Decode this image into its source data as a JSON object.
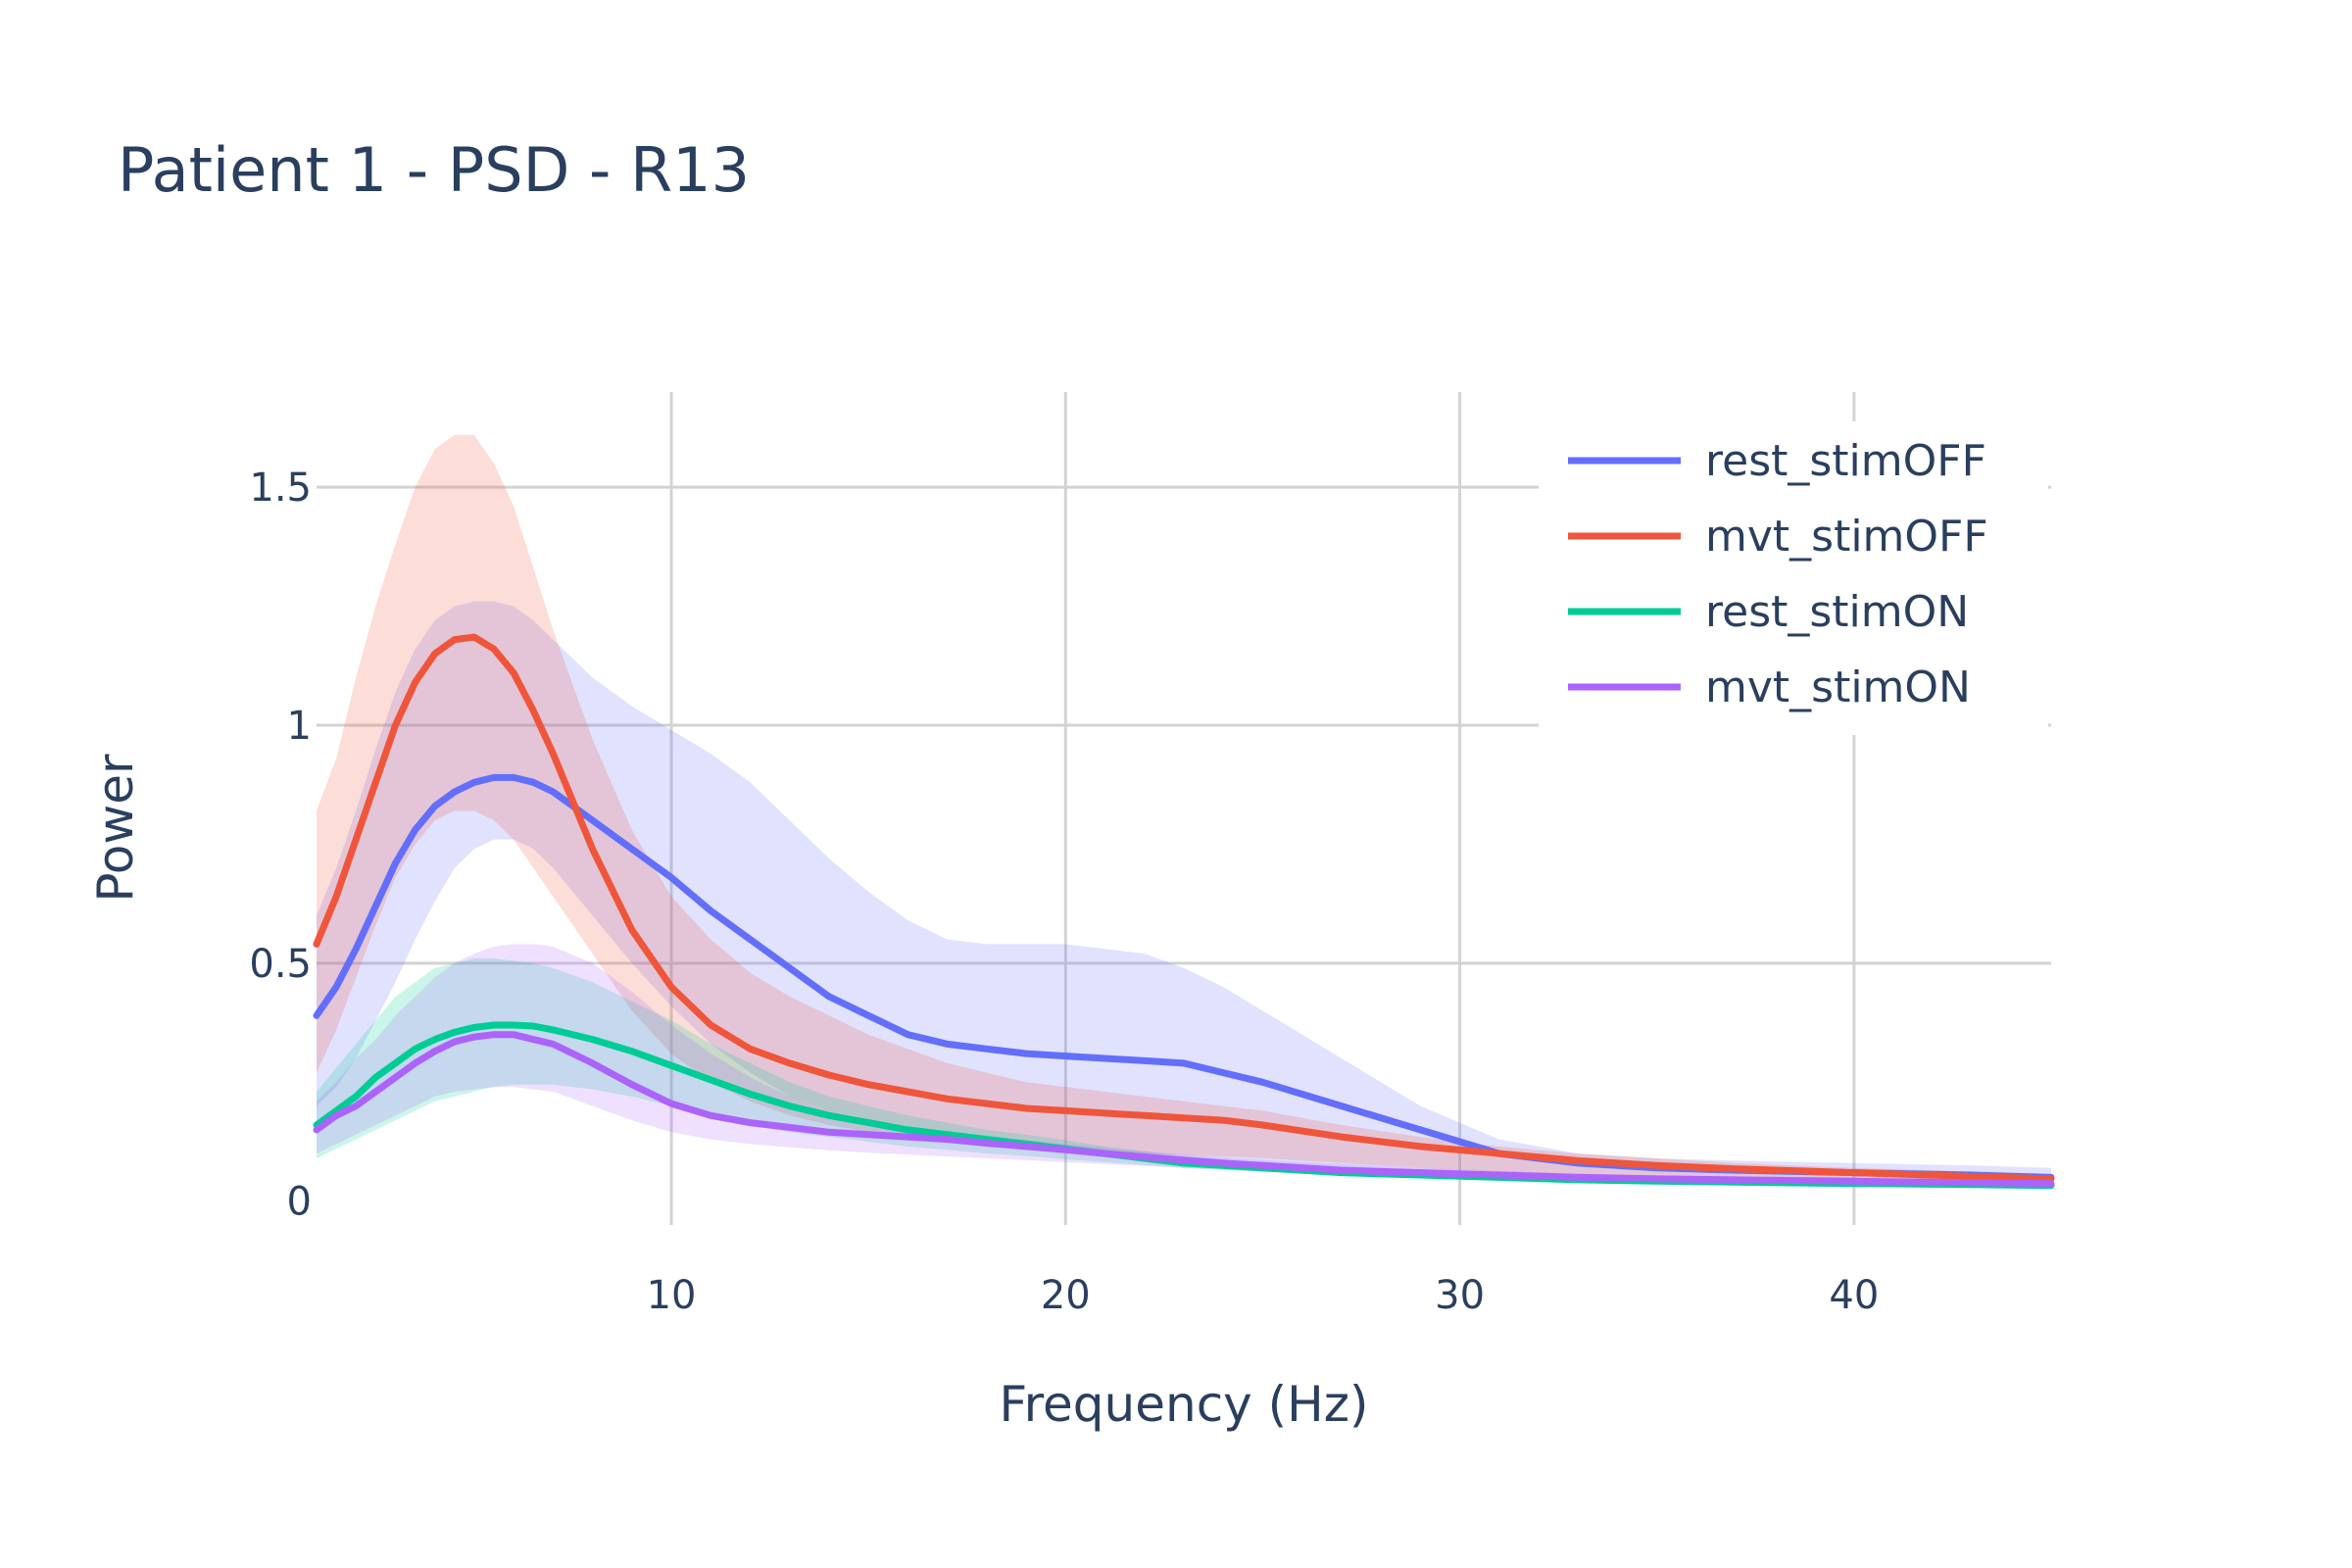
{
  "chart_data": {
    "type": "line",
    "title": "Patient 1 - PSD - R13",
    "xlabel": "Frequency (Hz)",
    "ylabel": "Power",
    "xlim": [
      1,
      45
    ],
    "ylim": [
      -0.05,
      1.7
    ],
    "x_ticks": [
      10,
      20,
      30,
      40
    ],
    "x_tick_labels": [
      "10",
      "20",
      "30",
      "40"
    ],
    "y_ticks": [
      0,
      0.5,
      1,
      1.5
    ],
    "y_tick_labels": [
      "0",
      "0.5",
      "1",
      "1.5"
    ],
    "grid": true,
    "legend_position": "top-right",
    "series": [
      {
        "name": "rest_stimOFF",
        "color": "#636efa",
        "x": [
          1,
          1.5,
          2,
          2.5,
          3,
          3.5,
          4,
          4.5,
          5,
          5.5,
          6,
          6.5,
          7,
          8,
          9,
          10,
          11,
          12,
          13,
          14,
          15,
          16,
          17,
          18,
          19,
          20,
          21,
          22,
          23,
          24,
          25,
          27,
          29,
          31,
          33,
          35,
          37,
          40,
          43,
          45
        ],
        "y": [
          0.39,
          0.45,
          0.53,
          0.62,
          0.71,
          0.78,
          0.83,
          0.86,
          0.88,
          0.89,
          0.89,
          0.88,
          0.86,
          0.8,
          0.74,
          0.68,
          0.61,
          0.55,
          0.49,
          0.43,
          0.39,
          0.35,
          0.33,
          0.32,
          0.31,
          0.305,
          0.3,
          0.295,
          0.29,
          0.27,
          0.25,
          0.2,
          0.15,
          0.1,
          0.08,
          0.07,
          0.065,
          0.06,
          0.055,
          0.05
        ],
        "upper": [
          0.6,
          0.7,
          0.82,
          0.95,
          1.07,
          1.16,
          1.22,
          1.25,
          1.26,
          1.26,
          1.25,
          1.22,
          1.18,
          1.1,
          1.04,
          0.99,
          0.94,
          0.88,
          0.8,
          0.72,
          0.65,
          0.59,
          0.55,
          0.54,
          0.54,
          0.54,
          0.53,
          0.52,
          0.49,
          0.45,
          0.4,
          0.3,
          0.2,
          0.13,
          0.1,
          0.09,
          0.085,
          0.08,
          0.075,
          0.07
        ],
        "lower": [
          0.2,
          0.24,
          0.3,
          0.38,
          0.46,
          0.55,
          0.63,
          0.7,
          0.74,
          0.76,
          0.76,
          0.74,
          0.7,
          0.6,
          0.5,
          0.41,
          0.33,
          0.27,
          0.22,
          0.19,
          0.17,
          0.155,
          0.145,
          0.135,
          0.125,
          0.115,
          0.105,
          0.095,
          0.09,
          0.085,
          0.08,
          0.07,
          0.06,
          0.05,
          0.045,
          0.04,
          0.04,
          0.035,
          0.03,
          0.03
        ]
      },
      {
        "name": "mvt_stimOFF",
        "color": "#ef553b",
        "x": [
          1,
          1.5,
          2,
          2.5,
          3,
          3.5,
          4,
          4.5,
          5,
          5.5,
          6,
          6.5,
          7,
          8,
          9,
          10,
          11,
          12,
          13,
          14,
          15,
          16,
          17,
          18,
          19,
          20,
          21,
          22,
          23,
          24,
          25,
          27,
          29,
          31,
          33,
          35,
          37,
          40,
          43,
          45
        ],
        "y": [
          0.54,
          0.64,
          0.76,
          0.88,
          1.0,
          1.09,
          1.15,
          1.18,
          1.185,
          1.16,
          1.11,
          1.03,
          0.94,
          0.74,
          0.57,
          0.45,
          0.37,
          0.32,
          0.29,
          0.265,
          0.245,
          0.23,
          0.215,
          0.205,
          0.195,
          0.19,
          0.185,
          0.18,
          0.175,
          0.17,
          0.16,
          0.135,
          0.115,
          0.1,
          0.085,
          0.075,
          0.068,
          0.06,
          0.052,
          0.047
        ],
        "upper": [
          0.82,
          0.93,
          1.1,
          1.25,
          1.38,
          1.5,
          1.58,
          1.61,
          1.61,
          1.55,
          1.46,
          1.33,
          1.2,
          0.97,
          0.78,
          0.64,
          0.55,
          0.48,
          0.43,
          0.39,
          0.35,
          0.32,
          0.29,
          0.27,
          0.25,
          0.24,
          0.23,
          0.22,
          0.21,
          0.2,
          0.19,
          0.16,
          0.135,
          0.115,
          0.1,
          0.09,
          0.08,
          0.07,
          0.062,
          0.055
        ],
        "lower": [
          0.27,
          0.36,
          0.47,
          0.58,
          0.68,
          0.75,
          0.8,
          0.82,
          0.82,
          0.8,
          0.76,
          0.7,
          0.64,
          0.52,
          0.4,
          0.31,
          0.25,
          0.21,
          0.18,
          0.16,
          0.145,
          0.135,
          0.125,
          0.118,
          0.112,
          0.108,
          0.104,
          0.1,
          0.097,
          0.094,
          0.09,
          0.08,
          0.07,
          0.062,
          0.055,
          0.05,
          0.046,
          0.042,
          0.038,
          0.035
        ]
      },
      {
        "name": "rest_stimON",
        "color": "#00cc96",
        "x": [
          1,
          1.5,
          2,
          2.5,
          3,
          3.5,
          4,
          4.5,
          5,
          5.5,
          6,
          6.5,
          7,
          8,
          9,
          10,
          11,
          12,
          13,
          14,
          15,
          16,
          17,
          18,
          19,
          20,
          21,
          22,
          23,
          24,
          25,
          27,
          29,
          31,
          33,
          35,
          37,
          40,
          43,
          45
        ],
        "y": [
          0.16,
          0.19,
          0.22,
          0.26,
          0.29,
          0.32,
          0.34,
          0.355,
          0.365,
          0.37,
          0.37,
          0.368,
          0.36,
          0.34,
          0.315,
          0.285,
          0.255,
          0.225,
          0.2,
          0.18,
          0.165,
          0.15,
          0.14,
          0.13,
          0.12,
          0.11,
          0.1,
          0.09,
          0.08,
          0.075,
          0.07,
          0.06,
          0.055,
          0.05,
          0.045,
          0.042,
          0.04,
          0.037,
          0.035,
          0.033
        ],
        "upper": [
          0.23,
          0.28,
          0.33,
          0.38,
          0.43,
          0.46,
          0.49,
          0.5,
          0.51,
          0.51,
          0.505,
          0.5,
          0.49,
          0.46,
          0.42,
          0.38,
          0.33,
          0.29,
          0.25,
          0.22,
          0.2,
          0.18,
          0.165,
          0.15,
          0.14,
          0.128,
          0.115,
          0.105,
          0.095,
          0.088,
          0.082,
          0.07,
          0.064,
          0.058,
          0.052,
          0.049,
          0.046,
          0.043,
          0.04,
          0.038
        ],
        "lower": [
          0.09,
          0.11,
          0.13,
          0.15,
          0.17,
          0.19,
          0.21,
          0.22,
          0.23,
          0.24,
          0.245,
          0.245,
          0.245,
          0.235,
          0.22,
          0.2,
          0.18,
          0.16,
          0.145,
          0.135,
          0.125,
          0.115,
          0.108,
          0.1,
          0.095,
          0.088,
          0.082,
          0.076,
          0.07,
          0.066,
          0.062,
          0.055,
          0.05,
          0.045,
          0.04,
          0.037,
          0.035,
          0.032,
          0.03,
          0.028
        ]
      },
      {
        "name": "mvt_stimON",
        "color": "#ab63fa",
        "x": [
          1,
          1.5,
          2,
          2.5,
          3,
          3.5,
          4,
          4.5,
          5,
          5.5,
          6,
          6.5,
          7,
          8,
          9,
          10,
          11,
          12,
          13,
          14,
          15,
          16,
          17,
          18,
          19,
          20,
          21,
          22,
          23,
          24,
          25,
          27,
          29,
          31,
          33,
          35,
          37,
          40,
          43,
          45
        ],
        "y": [
          0.15,
          0.18,
          0.2,
          0.23,
          0.26,
          0.29,
          0.315,
          0.335,
          0.345,
          0.35,
          0.35,
          0.34,
          0.33,
          0.29,
          0.245,
          0.205,
          0.18,
          0.165,
          0.155,
          0.145,
          0.14,
          0.135,
          0.13,
          0.122,
          0.115,
          0.108,
          0.1,
          0.093,
          0.086,
          0.08,
          0.075,
          0.065,
          0.06,
          0.055,
          0.05,
          0.047,
          0.045,
          0.042,
          0.039,
          0.037
        ],
        "upper": [
          0.21,
          0.25,
          0.3,
          0.34,
          0.39,
          0.43,
          0.47,
          0.5,
          0.52,
          0.535,
          0.54,
          0.54,
          0.535,
          0.5,
          0.44,
          0.37,
          0.31,
          0.26,
          0.22,
          0.19,
          0.17,
          0.155,
          0.145,
          0.135,
          0.128,
          0.12,
          0.112,
          0.105,
          0.098,
          0.092,
          0.087,
          0.078,
          0.07,
          0.064,
          0.058,
          0.054,
          0.051,
          0.047,
          0.044,
          0.042
        ],
        "lower": [
          0.1,
          0.12,
          0.14,
          0.16,
          0.18,
          0.2,
          0.22,
          0.23,
          0.235,
          0.24,
          0.24,
          0.235,
          0.23,
          0.2,
          0.17,
          0.145,
          0.13,
          0.12,
          0.113,
          0.107,
          0.102,
          0.098,
          0.094,
          0.09,
          0.086,
          0.082,
          0.078,
          0.074,
          0.07,
          0.066,
          0.063,
          0.057,
          0.052,
          0.048,
          0.044,
          0.041,
          0.039,
          0.036,
          0.034,
          0.032
        ]
      }
    ]
  }
}
